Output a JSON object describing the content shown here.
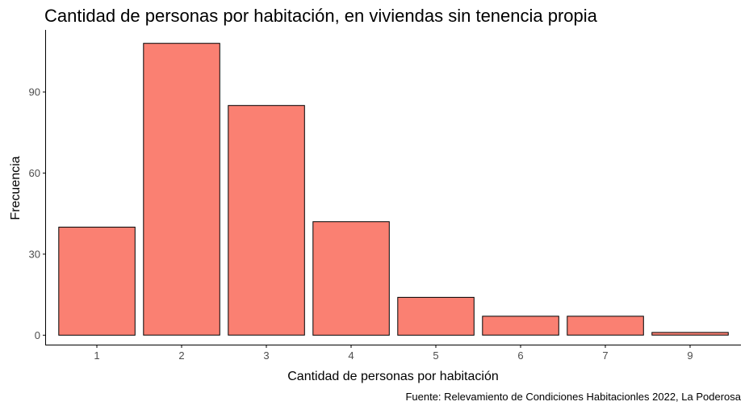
{
  "chart_data": {
    "type": "bar",
    "title": "Cantidad de personas por habitación, en viviendas sin tenencia propia",
    "xlabel": "Cantidad de personas por habitación",
    "ylabel": "Frecuencia",
    "caption": "Fuente: Relevamiento de Condiciones Habitacionles 2022, La Poderosa",
    "categories": [
      "1",
      "2",
      "3",
      "4",
      "5",
      "6",
      "7",
      "9"
    ],
    "values": [
      40,
      108,
      85,
      42,
      14,
      7,
      7,
      1
    ],
    "yticks": [
      0,
      30,
      60,
      90
    ],
    "ylim": [
      -3.5,
      113
    ],
    "bar_color": "#fa8072",
    "grid": false,
    "legend": "none"
  }
}
